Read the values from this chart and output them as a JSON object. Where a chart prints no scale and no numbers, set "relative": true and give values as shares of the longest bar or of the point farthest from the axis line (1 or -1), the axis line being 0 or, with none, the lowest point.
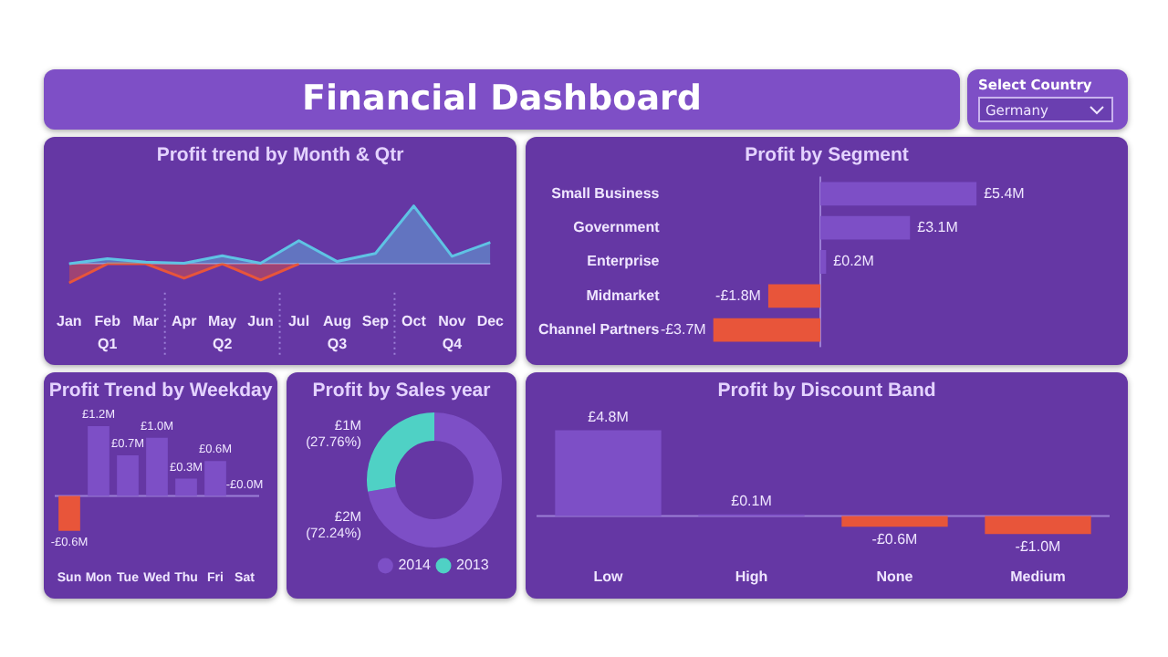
{
  "chart_data": [
    {
      "type": "other",
      "title": "Financial Dashboard"
    },
    {
      "type": "other",
      "title": "Select Country",
      "annotations": [
        "Germany"
      ]
    },
    {
      "type": "area",
      "title": "Profit trend by Month & Qtr",
      "relative": true,
      "categories": [
        "Jan",
        "Feb",
        "Mar",
        "Apr",
        "May",
        "Jun",
        "Jul",
        "Aug",
        "Sep",
        "Oct",
        "Nov",
        "Dec"
      ],
      "series": [
        {
          "color": "#5fc3e4",
          "values": [
            0,
            0.09,
            0.03,
            0.01,
            0.14,
            0.01,
            0.4,
            0.04,
            0.18,
            1,
            0.13,
            0.37
          ]
        },
        {
          "color": "#e8553a",
          "values": [
            -0.33,
            0,
            0,
            -0.25,
            0,
            -0.28,
            0,
            null,
            null,
            null,
            null,
            null
          ]
        }
      ],
      "annotations": [
        "Q1",
        "Q2",
        "Q3",
        "Q4"
      ],
      "ref_lines": [
        {
          "axis": "y",
          "value": 0,
          "color": "#9b7fd6"
        }
      ]
    },
    {
      "type": "bar",
      "title": "Profit by Segment",
      "orientation": "horizontal",
      "categories": [
        "Small Business",
        "Government",
        "Enterprise",
        "Midmarket",
        "Channel Partners"
      ],
      "values": [
        5.4,
        3.1,
        0.2,
        -1.8,
        -3.7
      ],
      "colors": [
        "#7d4fc6",
        "#7d4fc6",
        "#7d4fc6",
        "#e8553a",
        "#e8553a"
      ],
      "value_labels": [
        "£5.4M",
        "£3.1M",
        "£0.2M",
        "-£1.8M",
        "-£3.7M"
      ],
      "tick_labels": "y",
      "ref_lines": [
        {
          "axis": "x",
          "value": 0,
          "color": "#9b7fd6"
        }
      ]
    },
    {
      "type": "bar",
      "title": "Profit Trend by Weekday",
      "categories": [
        "Sun",
        "Mon",
        "Tue",
        "Wed",
        "Thu",
        "Fri",
        "Sat"
      ],
      "values": [
        -0.6,
        1.2,
        0.7,
        1.0,
        0.3,
        0.6,
        0
      ],
      "colors": [
        "#e8553a",
        "#7d4fc6",
        "#7d4fc6",
        "#7d4fc6",
        "#7d4fc6",
        "#7d4fc6",
        "#e8553a"
      ],
      "value_labels": [
        "-£0.6M",
        "£1.2M",
        "£0.7M",
        "£1.0M",
        "£0.3M",
        "£0.6M",
        "-£0.0M"
      ],
      "tick_labels": "x",
      "ref_lines": [
        {
          "axis": "y",
          "value": 0,
          "color": "#9b7fd6"
        }
      ]
    },
    {
      "type": "donut",
      "title": "Profit by Sales year",
      "categories": [
        "2014",
        "2013"
      ],
      "values": [
        72.24,
        27.76
      ],
      "colors": [
        "#7d4fc6",
        "#4fd1c5"
      ],
      "value_labels": [
        "£2M (72.24%)",
        "£1M (27.76%)"
      ],
      "legend": "bottom"
    },
    {
      "type": "bar",
      "title": "Profit by Discount Band",
      "categories": [
        "Low",
        "High",
        "None",
        "Medium"
      ],
      "values": [
        4.8,
        0.1,
        -0.6,
        -1.0
      ],
      "colors": [
        "#7d4fc6",
        "#7d4fc6",
        "#e8553a",
        "#e8553a"
      ],
      "value_labels": [
        "£4.8M",
        "£0.1M",
        "-£0.6M",
        "-£1.0M"
      ],
      "tick_labels": "x",
      "ref_lines": [
        {
          "axis": "y",
          "value": 0,
          "color": "#9b7fd6"
        }
      ]
    }
  ]
}
